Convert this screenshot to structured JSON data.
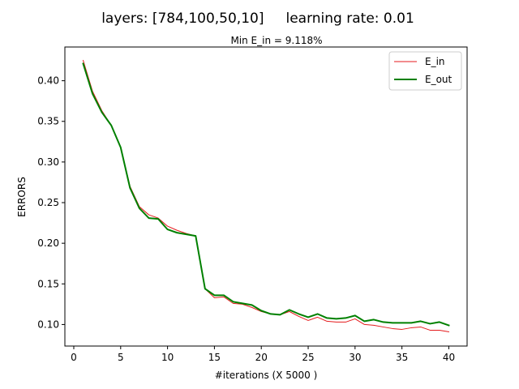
{
  "figure": {
    "suptitle": "layers: [784,100,50,10]     learning rate: 0.01"
  },
  "chart_data": {
    "type": "line",
    "title": "Min E_in = 9.118%",
    "xlabel": "#iterations (X 5000 )",
    "ylabel": "ERRORS",
    "xlim": [
      -0.95,
      41.95
    ],
    "ylim": [
      0.0735,
      0.4415
    ],
    "xticks": [
      0,
      5,
      10,
      15,
      20,
      25,
      30,
      35,
      40
    ],
    "yticks": [
      0.1,
      0.15,
      0.2,
      0.25,
      0.3,
      0.35,
      0.4
    ],
    "legend": {
      "position": "top-right"
    },
    "grid": false,
    "x": [
      1,
      2,
      3,
      4,
      5,
      6,
      7,
      8,
      9,
      10,
      11,
      12,
      13,
      14,
      15,
      16,
      17,
      18,
      19,
      20,
      21,
      22,
      23,
      24,
      25,
      26,
      27,
      28,
      29,
      30,
      31,
      32,
      33,
      34,
      35,
      36,
      37,
      38,
      39,
      40
    ],
    "series": [
      {
        "name": "E_in",
        "color": "#e41a1c",
        "line_width": 1,
        "values": [
          0.425,
          0.387,
          0.363,
          0.345,
          0.318,
          0.27,
          0.245,
          0.235,
          0.231,
          0.221,
          0.216,
          0.212,
          0.209,
          0.144,
          0.133,
          0.134,
          0.126,
          0.125,
          0.121,
          0.116,
          0.113,
          0.112,
          0.116,
          0.11,
          0.105,
          0.109,
          0.104,
          0.103,
          0.103,
          0.107,
          0.1,
          0.099,
          0.097,
          0.095,
          0.094,
          0.096,
          0.097,
          0.093,
          0.093,
          0.091
        ]
      },
      {
        "name": "E_out",
        "color": "#008000",
        "line_width": 2,
        "values": [
          0.421,
          0.384,
          0.361,
          0.345,
          0.318,
          0.268,
          0.243,
          0.231,
          0.23,
          0.217,
          0.213,
          0.211,
          0.209,
          0.144,
          0.136,
          0.136,
          0.128,
          0.126,
          0.124,
          0.117,
          0.113,
          0.112,
          0.118,
          0.113,
          0.109,
          0.113,
          0.108,
          0.107,
          0.108,
          0.111,
          0.104,
          0.106,
          0.103,
          0.102,
          0.102,
          0.102,
          0.104,
          0.101,
          0.103,
          0.099
        ]
      }
    ]
  }
}
